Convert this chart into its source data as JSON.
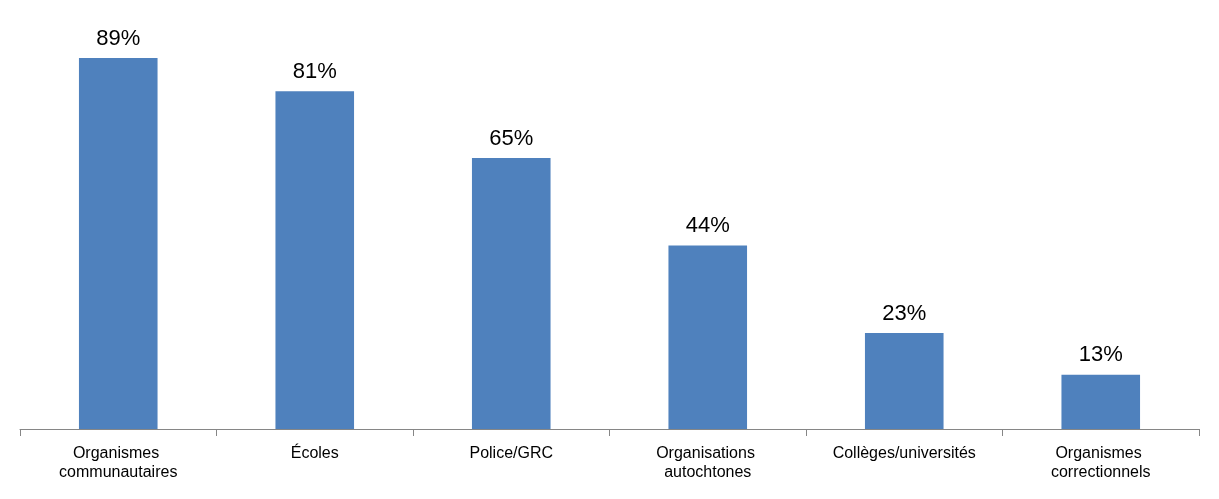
{
  "chart_data": {
    "type": "bar",
    "categories": [
      "Organismes communautaires",
      "Écoles",
      "Police/GRC",
      "Organisations autochtones",
      "Collèges/universités",
      "Organismes correctionnels"
    ],
    "values": [
      89,
      81,
      65,
      44,
      23,
      13
    ],
    "value_labels": [
      "89%",
      "81%",
      "65%",
      "44%",
      "23%",
      "13%"
    ],
    "color": "#4f81bd"
  }
}
